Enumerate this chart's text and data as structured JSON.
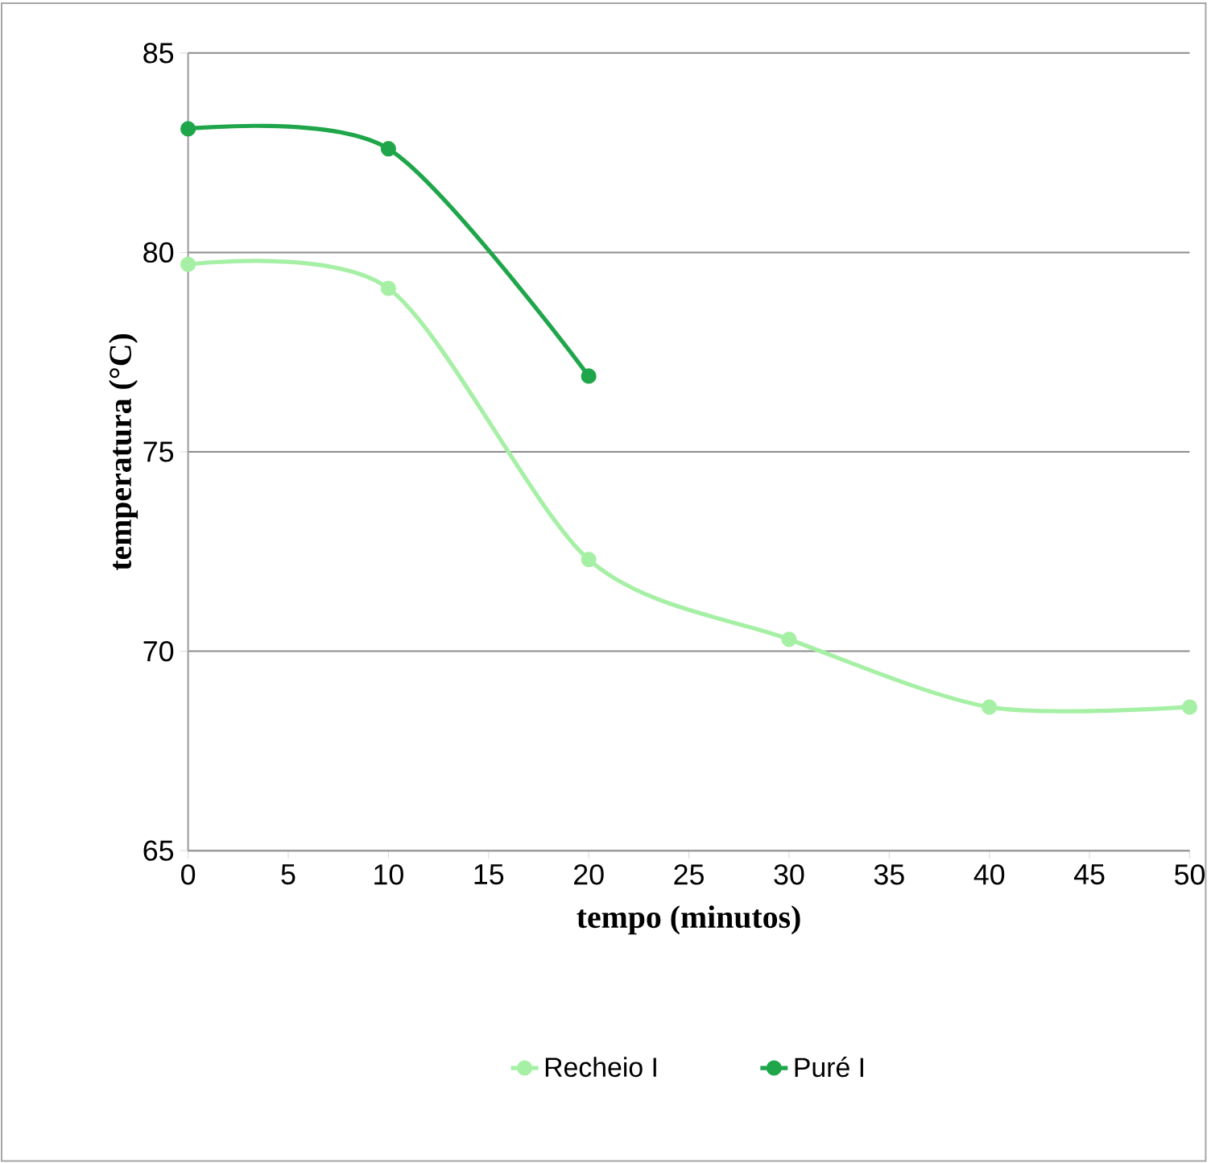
{
  "chart_data": {
    "type": "line",
    "xlabel": "tempo (minutos)",
    "ylabel": "temperatura (°C)",
    "xlim": [
      0,
      50
    ],
    "xticks": [
      0,
      5,
      10,
      15,
      20,
      25,
      30,
      35,
      40,
      45,
      50
    ],
    "ylim": [
      65,
      85
    ],
    "yticks": [
      65,
      70,
      75,
      80,
      85
    ],
    "grid": "y",
    "legend": "bottom",
    "marker": "circle",
    "line_style": "solid",
    "series": [
      {
        "name": "Recheio I",
        "color": "#a6f0a6",
        "x": [
          0,
          10,
          20,
          30,
          40,
          50
        ],
        "values": [
          79.7,
          79.1,
          72.3,
          70.3,
          68.6,
          68.6
        ]
      },
      {
        "name": "Puré I",
        "color": "#1fa64a",
        "x": [
          0,
          10,
          20
        ],
        "values": [
          83.1,
          82.6,
          76.9
        ]
      }
    ]
  }
}
